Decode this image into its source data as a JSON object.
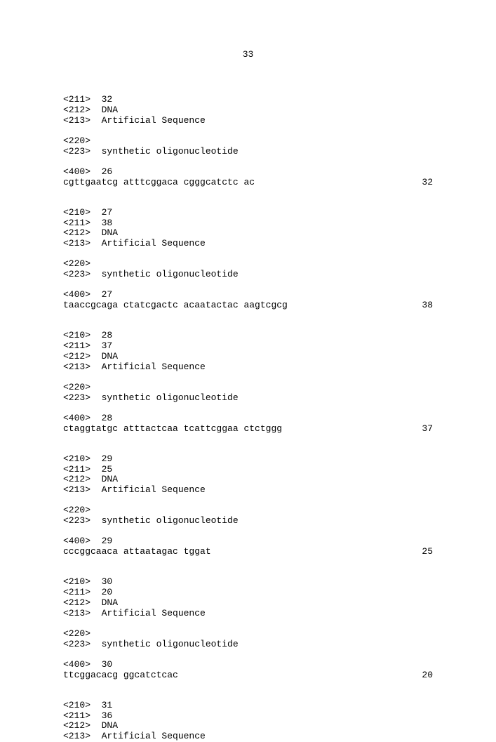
{
  "page_number": "33",
  "entries": [
    {
      "header": "<211>  32\n<212>  DNA\n<213>  Artificial Sequence",
      "feature": "<220>\n<223>  synthetic oligonucleotide",
      "seq_label": "<400>  26",
      "seq_text": "cgttgaatcg atttcggaca cgggcatctc ac",
      "seq_len": "32"
    },
    {
      "header": "<210>  27\n<211>  38\n<212>  DNA\n<213>  Artificial Sequence",
      "feature": "<220>\n<223>  synthetic oligonucleotide",
      "seq_label": "<400>  27",
      "seq_text": "taaccgcaga ctatcgactc acaatactac aagtcgcg",
      "seq_len": "38"
    },
    {
      "header": "<210>  28\n<211>  37\n<212>  DNA\n<213>  Artificial Sequence",
      "feature": "<220>\n<223>  synthetic oligonucleotide",
      "seq_label": "<400>  28",
      "seq_text": "ctaggtatgc atttactcaa tcattcggaa ctctggg",
      "seq_len": "37"
    },
    {
      "header": "<210>  29\n<211>  25\n<212>  DNA\n<213>  Artificial Sequence",
      "feature": "<220>\n<223>  synthetic oligonucleotide",
      "seq_label": "<400>  29",
      "seq_text": "cccggcaaca attaatagac tggat",
      "seq_len": "25"
    },
    {
      "header": "<210>  30\n<211>  20\n<212>  DNA\n<213>  Artificial Sequence",
      "feature": "<220>\n<223>  synthetic oligonucleotide",
      "seq_label": "<400>  30",
      "seq_text": "ttcggacacg ggcatctcac",
      "seq_len": "20"
    },
    {
      "header": "<210>  31\n<211>  36\n<212>  DNA\n<213>  Artificial Sequence",
      "feature": null,
      "seq_label": null,
      "seq_text": null,
      "seq_len": null
    }
  ]
}
